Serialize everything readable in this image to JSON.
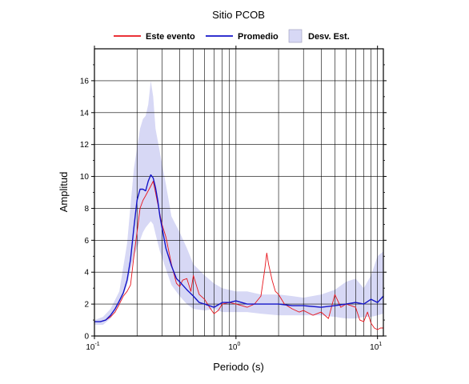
{
  "chart_data": {
    "type": "line",
    "title": "Sitio PCOB",
    "xlabel": "Periodo (s)",
    "ylabel": "Amplitud",
    "x_scale": "log",
    "xlim": [
      0.1,
      11
    ],
    "ylim": [
      0,
      18
    ],
    "x_ticks": [
      {
        "value": 0.1,
        "base": "10",
        "exp": "-1"
      },
      {
        "value": 1,
        "base": "10",
        "exp": "0"
      },
      {
        "value": 10,
        "base": "10",
        "exp": "1"
      }
    ],
    "y_ticks": [
      0,
      2,
      4,
      6,
      8,
      10,
      12,
      14,
      16
    ],
    "grid": true,
    "legend": {
      "placement": "top",
      "entries": [
        {
          "label": "Este evento",
          "kind": "line",
          "color": "#e8141b"
        },
        {
          "label": "Promedio",
          "kind": "line",
          "color": "#1414c8"
        },
        {
          "label": "Desv. Est.",
          "kind": "band",
          "color": "#d7d8f5"
        }
      ]
    },
    "band": {
      "label": "Desv. Est.",
      "color": "#d7d8f5",
      "x": [
        0.1,
        0.115,
        0.13,
        0.15,
        0.17,
        0.19,
        0.21,
        0.22,
        0.23,
        0.24,
        0.25,
        0.26,
        0.27,
        0.29,
        0.32,
        0.35,
        0.4,
        0.45,
        0.5,
        0.6,
        0.7,
        0.8,
        1.0,
        1.2,
        1.5,
        2.0,
        2.5,
        3.0,
        4.0,
        5.0,
        6.0,
        7.0,
        8.0,
        9.0,
        10.0,
        11.0
      ],
      "upper": [
        1.0,
        1.2,
        1.7,
        2.8,
        5.8,
        10.5,
        13.0,
        13.6,
        13.8,
        14.5,
        16.0,
        15.0,
        13.0,
        11.5,
        9.5,
        7.5,
        6.5,
        5.5,
        4.5,
        3.8,
        3.3,
        3.0,
        2.8,
        2.8,
        2.6,
        2.6,
        2.5,
        2.4,
        2.6,
        2.9,
        3.4,
        3.6,
        3.0,
        3.8,
        5.0,
        5.3
      ],
      "lower": [
        0.7,
        0.7,
        1.1,
        1.9,
        3.2,
        5.0,
        6.0,
        6.5,
        6.8,
        7.0,
        7.2,
        7.0,
        6.4,
        5.3,
        4.2,
        3.2,
        2.5,
        2.0,
        1.7,
        1.6,
        1.7,
        1.5,
        1.5,
        1.5,
        1.4,
        1.3,
        1.3,
        1.3,
        1.3,
        1.2,
        1.1,
        1.1,
        1.2,
        1.2,
        1.3,
        1.4
      ]
    },
    "series": [
      {
        "name": "Este evento",
        "color": "#e8141b",
        "x": [
          0.1,
          0.11,
          0.12,
          0.13,
          0.14,
          0.15,
          0.16,
          0.17,
          0.18,
          0.19,
          0.2,
          0.21,
          0.22,
          0.23,
          0.24,
          0.25,
          0.26,
          0.27,
          0.28,
          0.3,
          0.32,
          0.35,
          0.38,
          0.4,
          0.42,
          0.45,
          0.48,
          0.5,
          0.55,
          0.6,
          0.65,
          0.7,
          0.75,
          0.8,
          0.9,
          1.0,
          1.1,
          1.2,
          1.35,
          1.5,
          1.6,
          1.65,
          1.7,
          1.8,
          1.9,
          2.0,
          2.2,
          2.5,
          2.8,
          3.0,
          3.5,
          4.0,
          4.5,
          5.0,
          5.5,
          6.0,
          6.5,
          7.0,
          7.5,
          8.0,
          8.5,
          9.0,
          9.5,
          10.0,
          10.5,
          11.0
        ],
        "y": [
          0.9,
          0.9,
          1.0,
          1.2,
          1.5,
          2.0,
          2.5,
          2.8,
          3.2,
          5.0,
          6.5,
          8.0,
          8.5,
          8.8,
          9.1,
          9.4,
          9.7,
          9.0,
          8.3,
          7.0,
          6.2,
          4.5,
          3.3,
          3.1,
          3.5,
          3.6,
          2.8,
          3.8,
          2.6,
          2.3,
          1.8,
          1.4,
          1.6,
          2.0,
          2.1,
          2.0,
          1.9,
          1.8,
          2.0,
          2.5,
          4.2,
          5.2,
          4.5,
          3.5,
          2.8,
          2.6,
          2.0,
          1.7,
          1.5,
          1.6,
          1.3,
          1.5,
          1.1,
          2.6,
          1.8,
          2.0,
          1.9,
          1.8,
          1.0,
          0.9,
          1.5,
          0.8,
          0.5,
          0.4,
          0.5,
          0.5
        ]
      },
      {
        "name": "Promedio",
        "color": "#1414c8",
        "x": [
          0.1,
          0.11,
          0.12,
          0.13,
          0.14,
          0.15,
          0.16,
          0.17,
          0.18,
          0.19,
          0.2,
          0.21,
          0.22,
          0.23,
          0.24,
          0.25,
          0.26,
          0.27,
          0.28,
          0.29,
          0.3,
          0.32,
          0.35,
          0.38,
          0.4,
          0.45,
          0.5,
          0.55,
          0.6,
          0.7,
          0.8,
          0.9,
          1.0,
          1.2,
          1.5,
          2.0,
          2.5,
          3.0,
          4.0,
          5.0,
          6.0,
          7.0,
          8.0,
          9.0,
          10.0,
          11.0
        ],
        "y": [
          0.9,
          0.9,
          1.0,
          1.3,
          1.7,
          2.2,
          2.7,
          3.5,
          4.8,
          6.8,
          8.5,
          9.2,
          9.2,
          9.1,
          9.7,
          10.1,
          9.9,
          9.3,
          8.5,
          7.5,
          6.8,
          5.5,
          4.4,
          3.6,
          3.4,
          2.9,
          2.5,
          2.1,
          2.0,
          1.8,
          2.1,
          2.1,
          2.2,
          2.0,
          2.0,
          2.0,
          1.9,
          1.9,
          1.8,
          1.9,
          2.0,
          2.1,
          2.0,
          2.3,
          2.1,
          2.5
        ]
      }
    ]
  }
}
